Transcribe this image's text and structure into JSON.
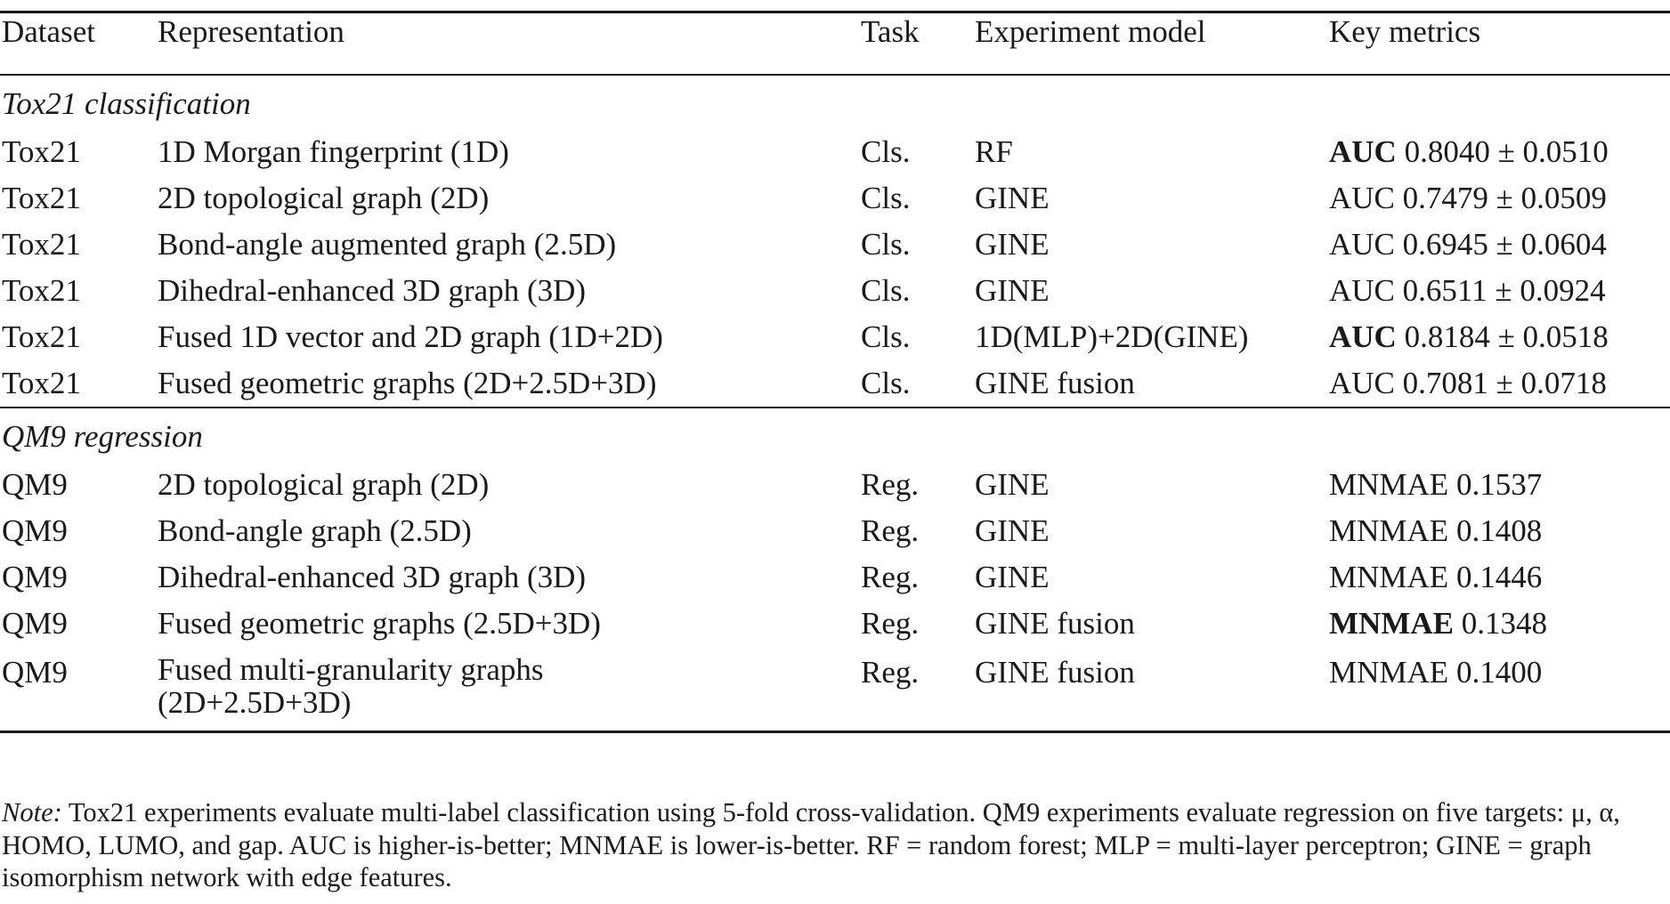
{
  "table": {
    "headers": {
      "dataset": "Dataset",
      "representation": "Representation",
      "task": "Task",
      "model": "Experiment model",
      "metrics": "Key metrics"
    },
    "groups": [
      {
        "title": "Tox21 classification",
        "rows": [
          {
            "dataset": "Tox21",
            "representation": "1D Morgan fingerprint (1D)",
            "task": "Cls.",
            "model": "RF",
            "metric_name": "AUC",
            "metric_value": "0.8040 ± 0.0510",
            "bold": true
          },
          {
            "dataset": "Tox21",
            "representation": "2D topological graph (2D)",
            "task": "Cls.",
            "model": "GINE",
            "metric_name": "AUC",
            "metric_value": "0.7479 ± 0.0509",
            "bold": false
          },
          {
            "dataset": "Tox21",
            "representation": "Bond-angle augmented graph (2.5D)",
            "task": "Cls.",
            "model": "GINE",
            "metric_name": "AUC",
            "metric_value": "0.6945 ± 0.0604",
            "bold": false
          },
          {
            "dataset": "Tox21",
            "representation": "Dihedral-enhanced 3D graph (3D)",
            "task": "Cls.",
            "model": "GINE",
            "metric_name": "AUC",
            "metric_value": "0.6511 ± 0.0924",
            "bold": false
          },
          {
            "dataset": "Tox21",
            "representation": "Fused 1D vector and 2D graph (1D+2D)",
            "task": "Cls.",
            "model": "1D(MLP)+2D(GINE)",
            "metric_name": "AUC",
            "metric_value": "0.8184 ± 0.0518",
            "bold": true
          },
          {
            "dataset": "Tox21",
            "representation": "Fused geometric graphs (2D+2.5D+3D)",
            "task": "Cls.",
            "model": "GINE fusion",
            "metric_name": "AUC",
            "metric_value": "0.7081 ± 0.0718",
            "bold": false
          }
        ]
      },
      {
        "title": "QM9 regression",
        "rows": [
          {
            "dataset": "QM9",
            "representation": "2D topological graph (2D)",
            "task": "Reg.",
            "model": "GINE",
            "metric_name": "MNMAE",
            "metric_value": "0.1537",
            "bold": false
          },
          {
            "dataset": "QM9",
            "representation": "Bond-angle graph (2.5D)",
            "task": "Reg.",
            "model": "GINE",
            "metric_name": "MNMAE",
            "metric_value": "0.1408",
            "bold": false
          },
          {
            "dataset": "QM9",
            "representation": "Dihedral-enhanced 3D graph (3D)",
            "task": "Reg.",
            "model": "GINE",
            "metric_name": "MNMAE",
            "metric_value": "0.1446",
            "bold": false
          },
          {
            "dataset": "QM9",
            "representation": "Fused geometric graphs (2.5D+3D)",
            "task": "Reg.",
            "model": "GINE fusion",
            "metric_name": "MNMAE",
            "metric_value": "0.1348",
            "bold": true
          },
          {
            "dataset": "QM9",
            "representation": "Fused multi-granularity graphs (2D+2.5D+3D)",
            "representation_line1": "Fused multi-granularity graphs",
            "representation_line2": "(2D+2.5D+3D)",
            "task": "Reg.",
            "model": "GINE fusion",
            "metric_name": "MNMAE",
            "metric_value": "0.1400",
            "bold": false
          }
        ]
      }
    ]
  },
  "note": {
    "label": "Note:",
    "text": " Tox21 experiments evaluate multi-label classification using 5-fold cross-validation. QM9 experiments evaluate regression on five targets: μ, α, HOMO, LUMO, and gap. AUC is higher-is-better; MNMAE is lower-is-better. RF = random forest; MLP = multi-layer perceptron; GINE = graph isomorphism network with edge features."
  }
}
